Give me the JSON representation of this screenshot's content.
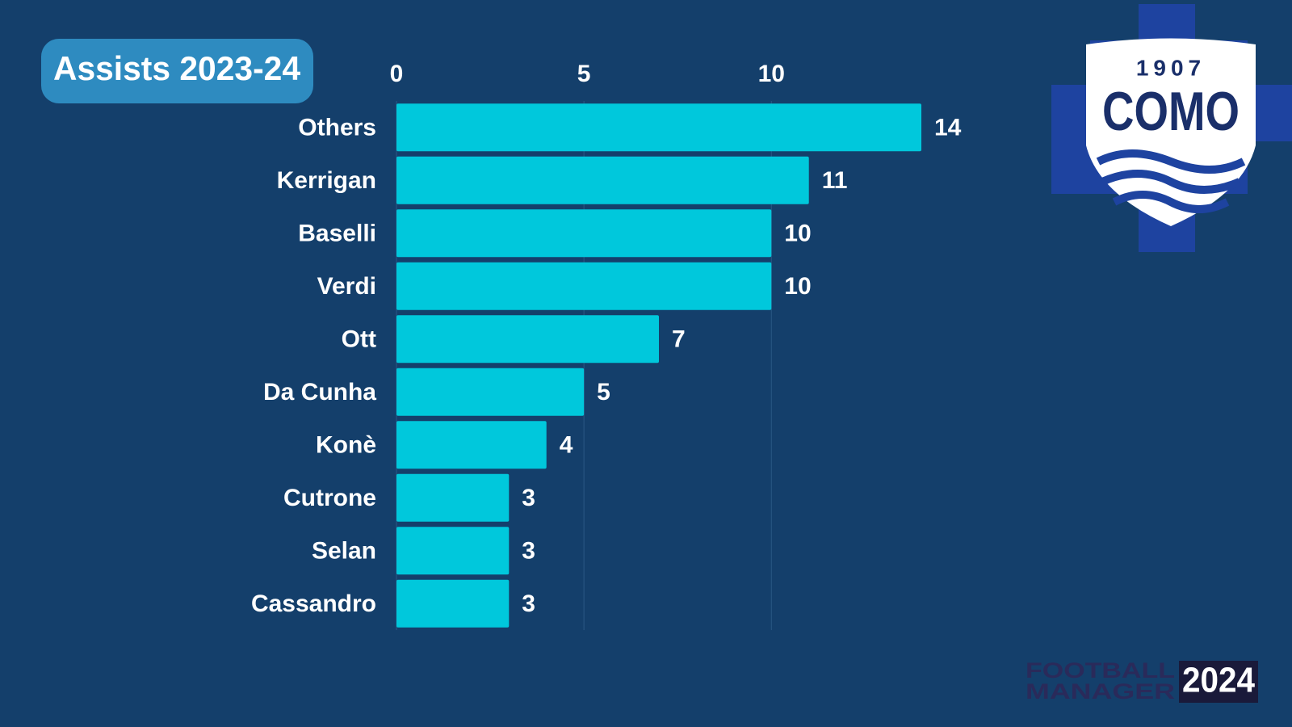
{
  "chart_data": {
    "type": "barh",
    "title": "Assists  2023-24",
    "categories": [
      "Others",
      "Kerrigan",
      "Baselli",
      "Verdi",
      "Ott",
      "Da Cunha",
      "Konè",
      "Cutrone",
      "Selan",
      "Cassandro"
    ],
    "values": [
      14,
      11,
      10,
      10,
      7,
      5,
      4,
      3,
      3,
      3
    ],
    "color": "#00c8dc",
    "xlim": [
      0,
      14
    ],
    "xticks": [
      0,
      5,
      10
    ],
    "grid": true
  },
  "crest": {
    "year": "1907",
    "name": "COMO"
  },
  "brand": {
    "line1": "FOOTBALL",
    "line2": "MANAGER",
    "year": "2024"
  }
}
